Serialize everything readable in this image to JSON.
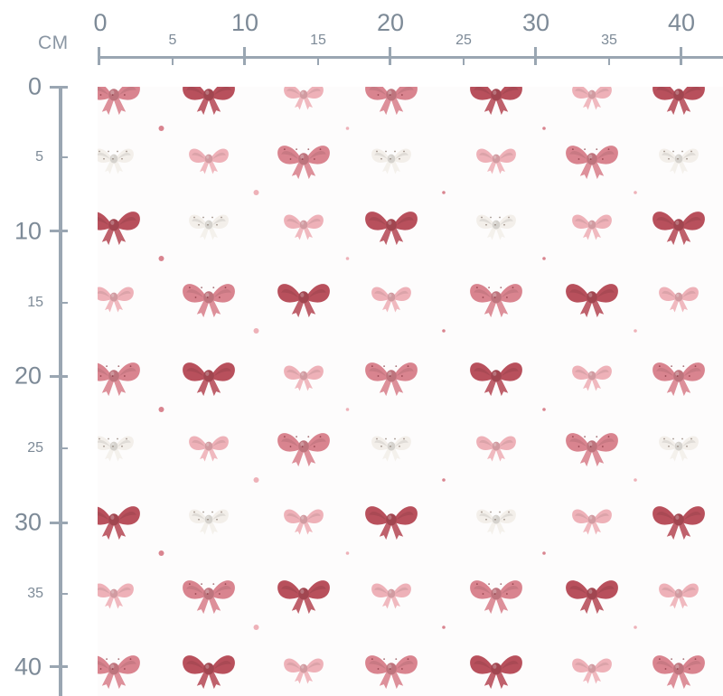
{
  "ruler": {
    "unit": "CM",
    "horizontal_major": [
      "0",
      "10",
      "20",
      "30",
      "40"
    ],
    "horizontal_minor": [
      "5",
      "15",
      "25",
      "35"
    ],
    "vertical_major": [
      "0",
      "10",
      "20",
      "30",
      "40"
    ],
    "vertical_minor": [
      "5",
      "15",
      "25",
      "35"
    ]
  },
  "pattern": {
    "motif": "bow-icon",
    "dot_motif": "polka-dot",
    "background": "#fdfcfc",
    "colors": {
      "dark_rose": "#b8505c",
      "rose": "#d9848f",
      "blush": "#eeb1b8",
      "cream": "#f3efea",
      "ruler": "#9aa6b2"
    }
  }
}
